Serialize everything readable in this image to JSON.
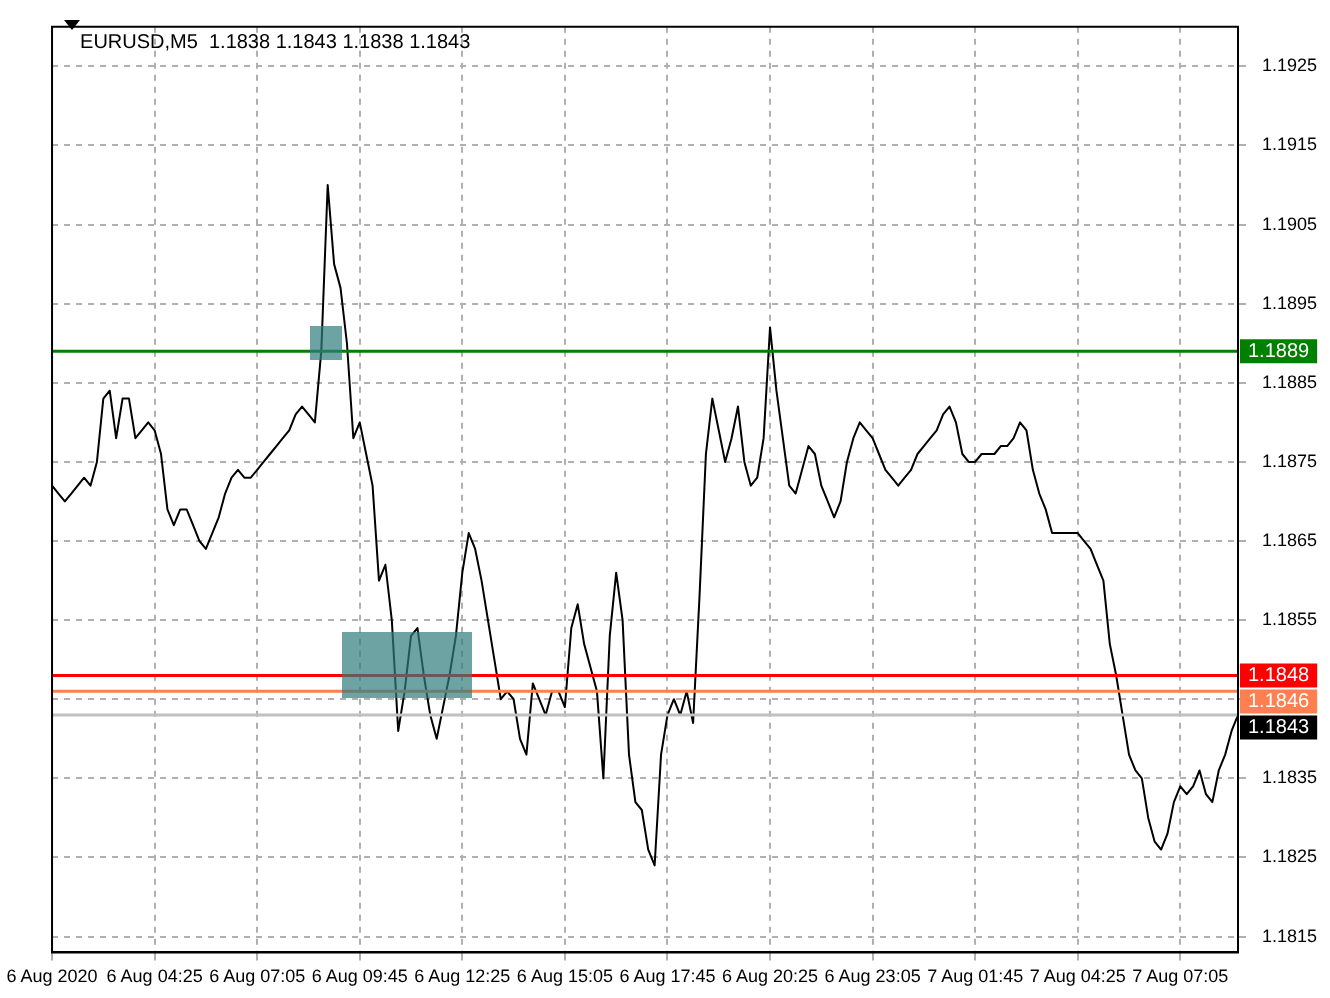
{
  "chart_data": {
    "type": "line",
    "title": "EURUSD,M5  1.1838 1.1843 1.1838 1.1843",
    "categories": [
      "6 Aug 2020",
      null,
      null,
      null,
      null,
      null,
      null,
      null,
      null,
      null,
      null,
      null,
      null,
      null,
      null,
      null,
      "6 Aug 04:25",
      null,
      null,
      null,
      null,
      null,
      null,
      null,
      null,
      null,
      null,
      null,
      null,
      null,
      null,
      null,
      "6 Aug 07:05",
      null,
      null,
      null,
      null,
      null,
      null,
      null,
      null,
      null,
      null,
      null,
      null,
      null,
      null,
      null,
      "6 Aug 09:45",
      null,
      null,
      null,
      null,
      null,
      null,
      null,
      null,
      null,
      null,
      null,
      null,
      null,
      null,
      null,
      "6 Aug 12:25",
      null,
      null,
      null,
      null,
      null,
      null,
      null,
      null,
      null,
      null,
      null,
      null,
      null,
      null,
      null,
      "6 Aug 15:05",
      null,
      null,
      null,
      null,
      null,
      null,
      null,
      null,
      null,
      null,
      null,
      null,
      null,
      null,
      null,
      "6 Aug 17:45",
      null,
      null,
      null,
      null,
      null,
      null,
      null,
      null,
      null,
      null,
      null,
      null,
      null,
      null,
      null,
      "6 Aug 20:25",
      null,
      null,
      null,
      null,
      null,
      null,
      null,
      null,
      null,
      null,
      null,
      null,
      null,
      null,
      null,
      "6 Aug 23:05",
      null,
      null,
      null,
      null,
      null,
      null,
      null,
      null,
      null,
      null,
      null,
      null,
      null,
      null,
      null,
      "7 Aug 01:45",
      null,
      null,
      null,
      null,
      null,
      null,
      null,
      null,
      null,
      null,
      null,
      null,
      null,
      null,
      null,
      "7 Aug 04:25",
      null,
      null,
      null,
      null,
      null,
      null,
      null,
      null,
      null,
      null,
      null,
      null,
      null,
      null,
      null,
      "7 Aug 07:05",
      null,
      null,
      null,
      null,
      null,
      null,
      null,
      null,
      null
    ],
    "series": [
      {
        "color": "#000000",
        "values": [
          1.1872,
          1.1871,
          1.187,
          1.1871,
          1.1872,
          1.1873,
          1.1872,
          1.1875,
          1.1883,
          1.1884,
          1.1878,
          1.1883,
          1.1883,
          1.1878,
          1.1879,
          1.188,
          1.1879,
          1.1876,
          1.1869,
          1.1867,
          1.1869,
          1.1869,
          1.1867,
          1.1865,
          1.1864,
          1.1866,
          1.1868,
          1.1871,
          1.1873,
          1.1874,
          1.1873,
          1.1873,
          1.1874,
          1.1875,
          1.1876,
          1.1877,
          1.1878,
          1.1879,
          1.1881,
          1.1882,
          1.1881,
          1.188,
          1.1889,
          1.191,
          1.19,
          1.1897,
          1.189,
          1.1878,
          1.188,
          1.1876,
          1.1872,
          1.186,
          1.1862,
          1.1855,
          1.1841,
          1.1846,
          1.1853,
          1.1854,
          1.1848,
          1.1843,
          1.184,
          1.1844,
          1.1848,
          1.1853,
          1.1861,
          1.1866,
          1.1864,
          1.186,
          1.1855,
          1.185,
          1.1845,
          1.1846,
          1.1845,
          1.184,
          1.1838,
          1.1847,
          1.1845,
          1.1843,
          1.1846,
          1.1846,
          1.1844,
          1.1854,
          1.1857,
          1.1852,
          1.1849,
          1.1846,
          1.1835,
          1.1853,
          1.1861,
          1.1855,
          1.1838,
          1.1832,
          1.1831,
          1.1826,
          1.1824,
          1.1838,
          1.1843,
          1.1845,
          1.1843,
          1.1846,
          1.1842,
          1.1858,
          1.1876,
          1.1883,
          1.1879,
          1.1875,
          1.1878,
          1.1882,
          1.1875,
          1.1872,
          1.1873,
          1.1878,
          1.1892,
          1.1884,
          1.1878,
          1.1872,
          1.1871,
          1.1874,
          1.1877,
          1.1876,
          1.1872,
          1.187,
          1.1868,
          1.187,
          1.1875,
          1.1878,
          1.188,
          1.1879,
          1.1878,
          1.1876,
          1.1874,
          1.1873,
          1.1872,
          1.1873,
          1.1874,
          1.1876,
          1.1877,
          1.1878,
          1.1879,
          1.1881,
          1.1882,
          1.188,
          1.1876,
          1.1875,
          1.1875,
          1.1876,
          1.1876,
          1.1876,
          1.1877,
          1.1877,
          1.1878,
          1.188,
          1.1879,
          1.1874,
          1.1871,
          1.1869,
          1.1866,
          1.1866,
          1.1866,
          1.1866,
          1.1866,
          1.1865,
          1.1864,
          1.1862,
          1.186,
          1.1852,
          1.1848,
          1.1843,
          1.1838,
          1.1836,
          1.1835,
          1.183,
          1.1827,
          1.1826,
          1.1828,
          1.1832,
          1.1834,
          1.1833,
          1.1834,
          1.1836,
          1.1833,
          1.1832,
          1.1836,
          1.1838,
          1.1841,
          1.1843
        ]
      }
    ],
    "ylim": [
      1.1813,
      1.193
    ],
    "yticks": [
      1.1815,
      1.1825,
      1.1835,
      {
        "value": 1.1845,
        "label": null
      },
      1.1855,
      1.1865,
      1.1875,
      1.1885,
      1.1895,
      1.1905,
      1.1915,
      1.1925
    ],
    "ref_lines": [
      {
        "axis": "y",
        "value": 1.1889,
        "label": "1.1889",
        "color": "#008000"
      },
      {
        "axis": "y",
        "value": 1.1848,
        "label": "1.1848",
        "color": "#ff0000"
      },
      {
        "axis": "y",
        "value": 1.1846,
        "label": "1.1846",
        "color": "#ff7f50"
      },
      {
        "axis": "y",
        "value": 1.1843,
        "label": "1.1843",
        "color": "#c0c0c0"
      }
    ],
    "grid": true,
    "marker": "none",
    "line_style": "solid"
  }
}
